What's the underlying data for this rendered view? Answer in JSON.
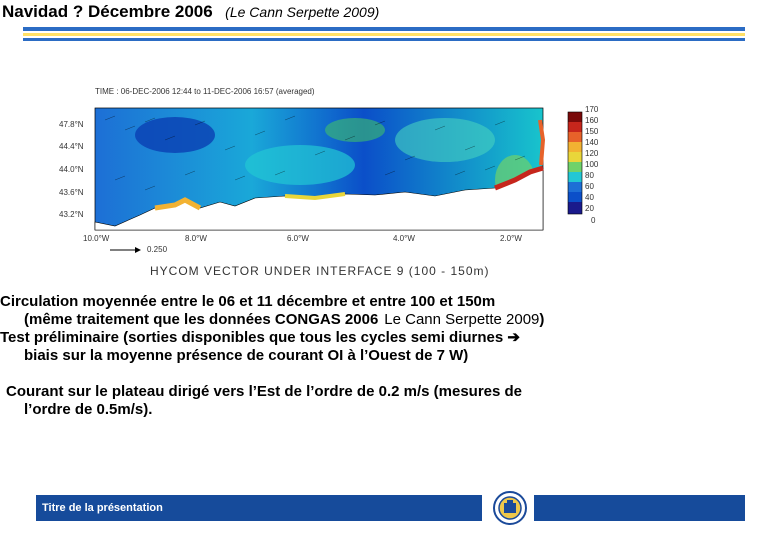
{
  "header": {
    "title": "Navidad ? Décembre 2006",
    "reference": "(Le Cann Serpette 2009)"
  },
  "figure": {
    "time_label": "TIME : 06-DEC-2006 12:44 to 11-DEC-2006 16:57 (averaged)",
    "lat_labels": [
      "47.8°N",
      "44.4°N",
      "44.0°N",
      "43.6°N",
      "43.2°N"
    ],
    "lon_labels": [
      "10.0°W",
      "8.0°W",
      "6.0°W",
      "4.0°W",
      "2.0°W"
    ],
    "vector_scale": "0.250",
    "caption": "HYCOM VECTOR UNDER INTERFACE 9 (100 - 150m)",
    "colorbar_labels": [
      "170",
      "160",
      "150",
      "140",
      "120",
      "100",
      "80",
      "60",
      "40",
      "20",
      "0"
    ]
  },
  "body": {
    "p1_line1": "Circulation moyennée entre le 06 et 11 décembre et  entre 100 et 150m",
    "p1_line2": "(même traitement que les données CONGAS 2006",
    "p1_ref": "Le Cann Serpette 2009",
    "p1_close": ")",
    "p2_line1": " Test préliminaire (sorties disponibles que  tous les cycles semi diurnes",
    "p2_arrow": "➔",
    "p2_line2": "biais sur la moyenne présence de courant OI à l’Ouest de 7 W)",
    "p3_line1": "Courant sur le plateau dirigé vers l’Est  de l’ordre de 0.2 m/s (mesures de",
    "p3_line2": "l’ordre de 0.5m/s)."
  },
  "footer": {
    "label": "Titre de la présentation"
  }
}
